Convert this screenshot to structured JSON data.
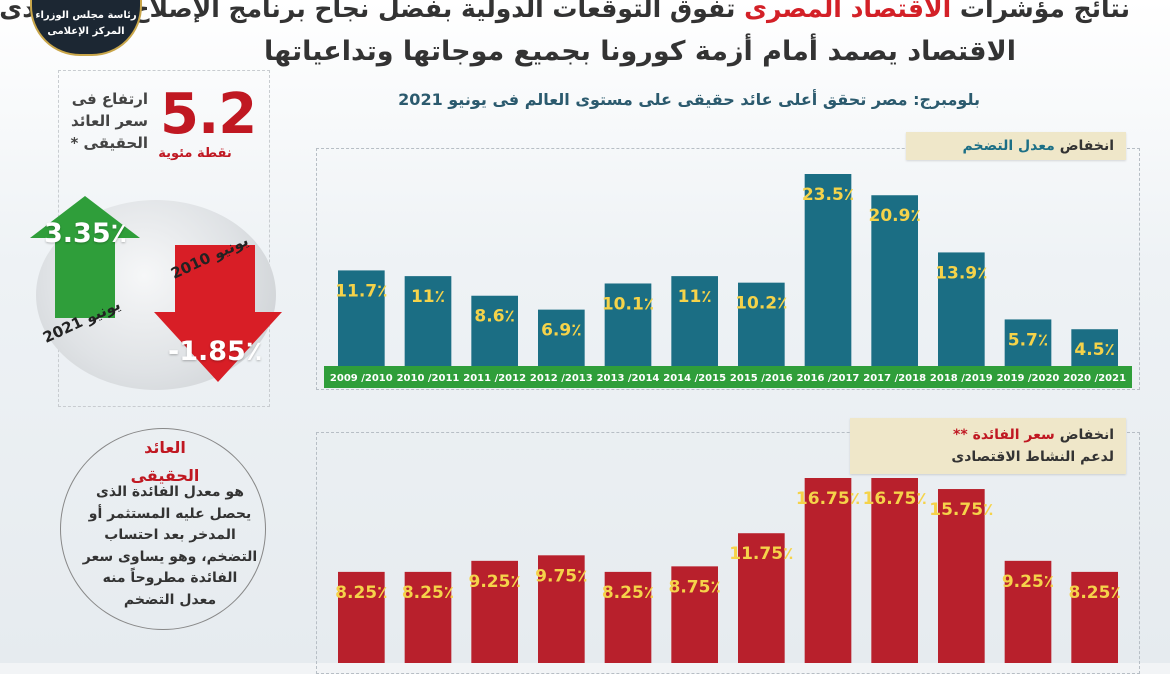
{
  "header": {
    "line1_pre": "نتائج مؤشرات",
    "line1_accent": "الاقتصاد المصرى",
    "line1_post": "تفوق التوقعات الدولية بفضل نجاح برنامج الإصلاح الاقتصادى",
    "line2": "الاقتصاد يصمد أمام أزمة كورونا بجميع موجاتها وتداعياتها",
    "subhead": "بلومبرج: مصر تحقق أعلى عائد حقيقى على مستوى العالم فى يونيو 2021"
  },
  "logo": {
    "line1": "رئاسة مجلس الوزراء",
    "line2": "المركز الإعلامى"
  },
  "left_panel": {
    "big_value": "5.2",
    "big_unit": "نقطة مئوية",
    "rise_label": "ارتفاع فى سعر العائد الحقيقى *",
    "up_value": "3.35٪",
    "up_date": "يونيو 2021",
    "down_value": "-1.85٪",
    "down_date": "يونيو 2010",
    "up_color": "#2f9e3a",
    "down_color": "#d81e26",
    "real_title_1": "العائد",
    "real_title_2": "الحقيقى",
    "real_def": "هو معدل الفائدة الذى يحصل عليه المستثمر أو المدخر بعد احتساب التضخم، وهو يساوى سعر الفائدة مطروحاً منه معدل التضخم"
  },
  "chart_data": [
    {
      "type": "bar",
      "title_pre": "انخفاض",
      "title_accent": "معدل التضخم",
      "color": "#1b6e84",
      "axis_color": "#2f9e3a",
      "categories": [
        "2009 /2010",
        "2010 /2011",
        "2011 /2012",
        "2012 /2013",
        "2013 /2014",
        "2014 /2015",
        "2015 /2016",
        "2016 /2017",
        "2017 /2018",
        "2018 /2019",
        "2019 /2020",
        "2020 /2021"
      ],
      "values": [
        11.7,
        11,
        8.6,
        6.9,
        10.1,
        11,
        10.2,
        23.5,
        20.9,
        13.9,
        5.7,
        4.5
      ],
      "labels": [
        "11.7",
        "11",
        "8.6",
        "6.9",
        "10.1",
        "11",
        "10.2",
        "23.5",
        "20.9",
        "13.9",
        "5.7",
        "4.5"
      ],
      "unit": "٪",
      "ylim": [
        0,
        23.5
      ]
    },
    {
      "type": "bar",
      "title_pre": "انخفاض",
      "title_accent": "سعر الفائدة",
      "title_suffix": "**",
      "title_line2": "لدعم النشاط الاقتصادى",
      "color": "#b8202c",
      "values": [
        8.25,
        8.25,
        9.25,
        9.75,
        8.25,
        8.75,
        11.75,
        16.75,
        16.75,
        15.75,
        9.25,
        8.25
      ],
      "labels": [
        "8.25",
        "8.25",
        "9.25",
        "9.75",
        "8.25",
        "8.75",
        "11.75",
        "16.75",
        "16.75",
        "15.75",
        "9.25",
        "8.25"
      ],
      "unit": "٪",
      "ylim": [
        0,
        16.75
      ]
    }
  ]
}
